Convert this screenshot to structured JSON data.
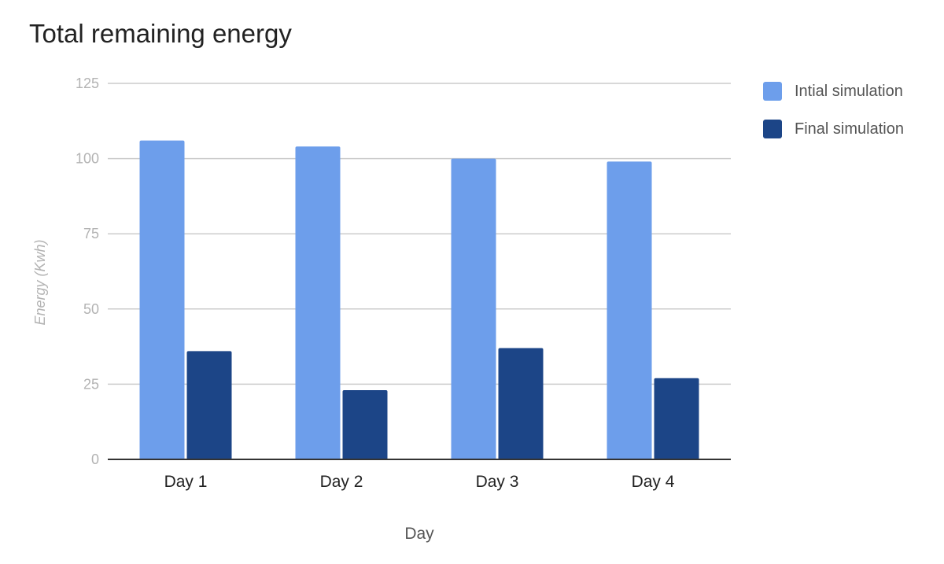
{
  "chart_data": {
    "type": "bar",
    "title": "Total remaining energy",
    "xlabel": "Day",
    "ylabel": "Energy (Kwh)",
    "categories": [
      "Day 1",
      "Day 2",
      "Day 3",
      "Day 4"
    ],
    "series": [
      {
        "name": "Intial simulation",
        "color": "#6d9eeb",
        "values": [
          106,
          104,
          100,
          99
        ]
      },
      {
        "name": "Final simulation",
        "color": "#1c4587",
        "values": [
          36,
          23,
          37,
          27
        ]
      }
    ],
    "ylim": [
      0,
      125
    ],
    "yticks": [
      "0",
      "25",
      "50",
      "75",
      "100",
      "125"
    ],
    "grid": true,
    "legend_position": "right"
  }
}
